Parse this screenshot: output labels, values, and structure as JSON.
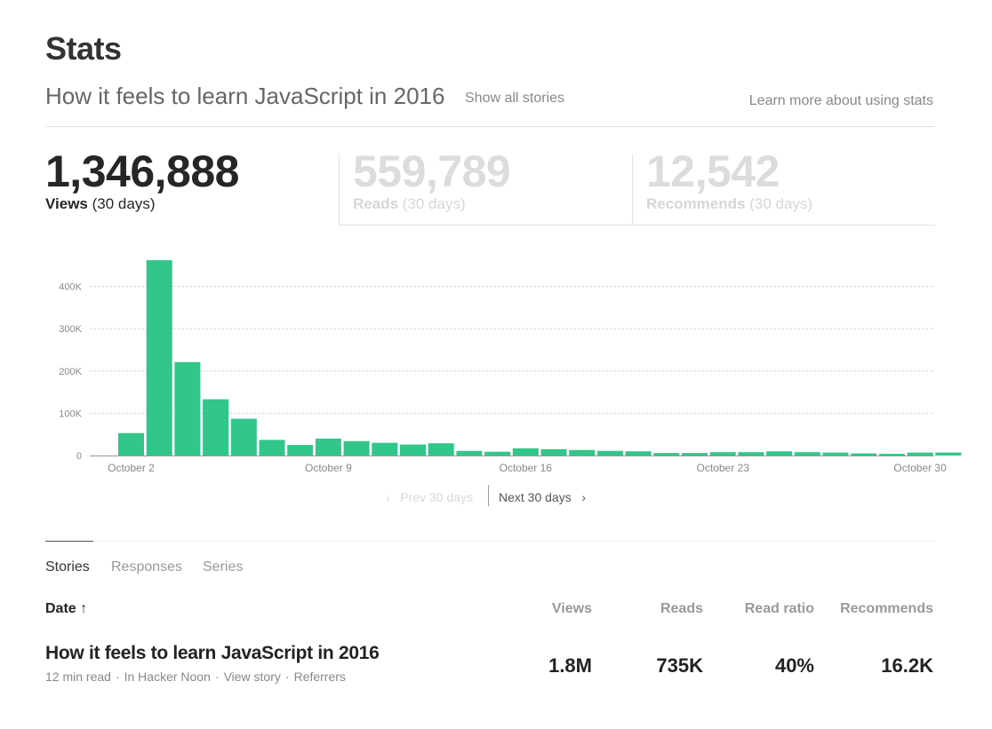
{
  "header": {
    "title": "Stats",
    "story_title": "How it feels to learn JavaScript in 2016",
    "show_all": "Show all stories",
    "learn_more": "Learn more about using stats"
  },
  "metrics": {
    "views": {
      "value": "1,346,888",
      "label": "Views",
      "period": "(30 days)"
    },
    "reads": {
      "value": "559,789",
      "label": "Reads",
      "period": "(30 days)"
    },
    "recommends": {
      "value": "12,542",
      "label": "Recommends",
      "period": "(30 days)"
    }
  },
  "chart_data": {
    "type": "bar",
    "title": "",
    "xlabel": "",
    "ylabel": "",
    "ylim": [
      0,
      460000
    ],
    "yticks": [
      0,
      100000,
      200000,
      300000,
      400000
    ],
    "ytick_labels": [
      "0",
      "100K",
      "200K",
      "300K",
      "400K"
    ],
    "categories": [
      "Oct 2",
      "Oct 3",
      "Oct 4",
      "Oct 5",
      "Oct 6",
      "Oct 7",
      "Oct 8",
      "Oct 9",
      "Oct 10",
      "Oct 11",
      "Oct 12",
      "Oct 13",
      "Oct 14",
      "Oct 15",
      "Oct 16",
      "Oct 17",
      "Oct 18",
      "Oct 19",
      "Oct 20",
      "Oct 21",
      "Oct 22",
      "Oct 23",
      "Oct 24",
      "Oct 25",
      "Oct 26",
      "Oct 27",
      "Oct 28",
      "Oct 29",
      "Oct 30",
      "Oct 31"
    ],
    "values": [
      53000,
      462000,
      221000,
      133000,
      87000,
      37000,
      25000,
      40000,
      34000,
      30000,
      26000,
      29000,
      11000,
      9000,
      17000,
      15000,
      13000,
      11000,
      10000,
      6000,
      6000,
      8000,
      8000,
      10000,
      8000,
      7000,
      5000,
      4000,
      7000,
      7000
    ],
    "xtick_labels": [
      {
        "index": 0,
        "label": "October 2"
      },
      {
        "index": 7,
        "label": "October 9"
      },
      {
        "index": 14,
        "label": "October 16"
      },
      {
        "index": 21,
        "label": "October 23"
      },
      {
        "index": 28,
        "label": "October 30"
      }
    ],
    "bar_color": "#33c68a",
    "grid": true
  },
  "pager": {
    "prev": "Prev 30 days",
    "next": "Next 30 days"
  },
  "tabs": [
    {
      "label": "Stories"
    },
    {
      "label": "Responses"
    },
    {
      "label": "Series"
    }
  ],
  "table": {
    "headers": {
      "date": "Date",
      "views": "Views",
      "reads": "Reads",
      "ratio": "Read ratio",
      "recommends": "Recommends"
    },
    "rows": [
      {
        "title": "How it feels to learn JavaScript in 2016",
        "read_time": "12 min read",
        "publication": "In Hacker Noon",
        "view_story": "View story",
        "referrers": "Referrers",
        "views": "1.8M",
        "reads": "735K",
        "ratio": "40%",
        "recommends": "16.2K"
      }
    ]
  }
}
